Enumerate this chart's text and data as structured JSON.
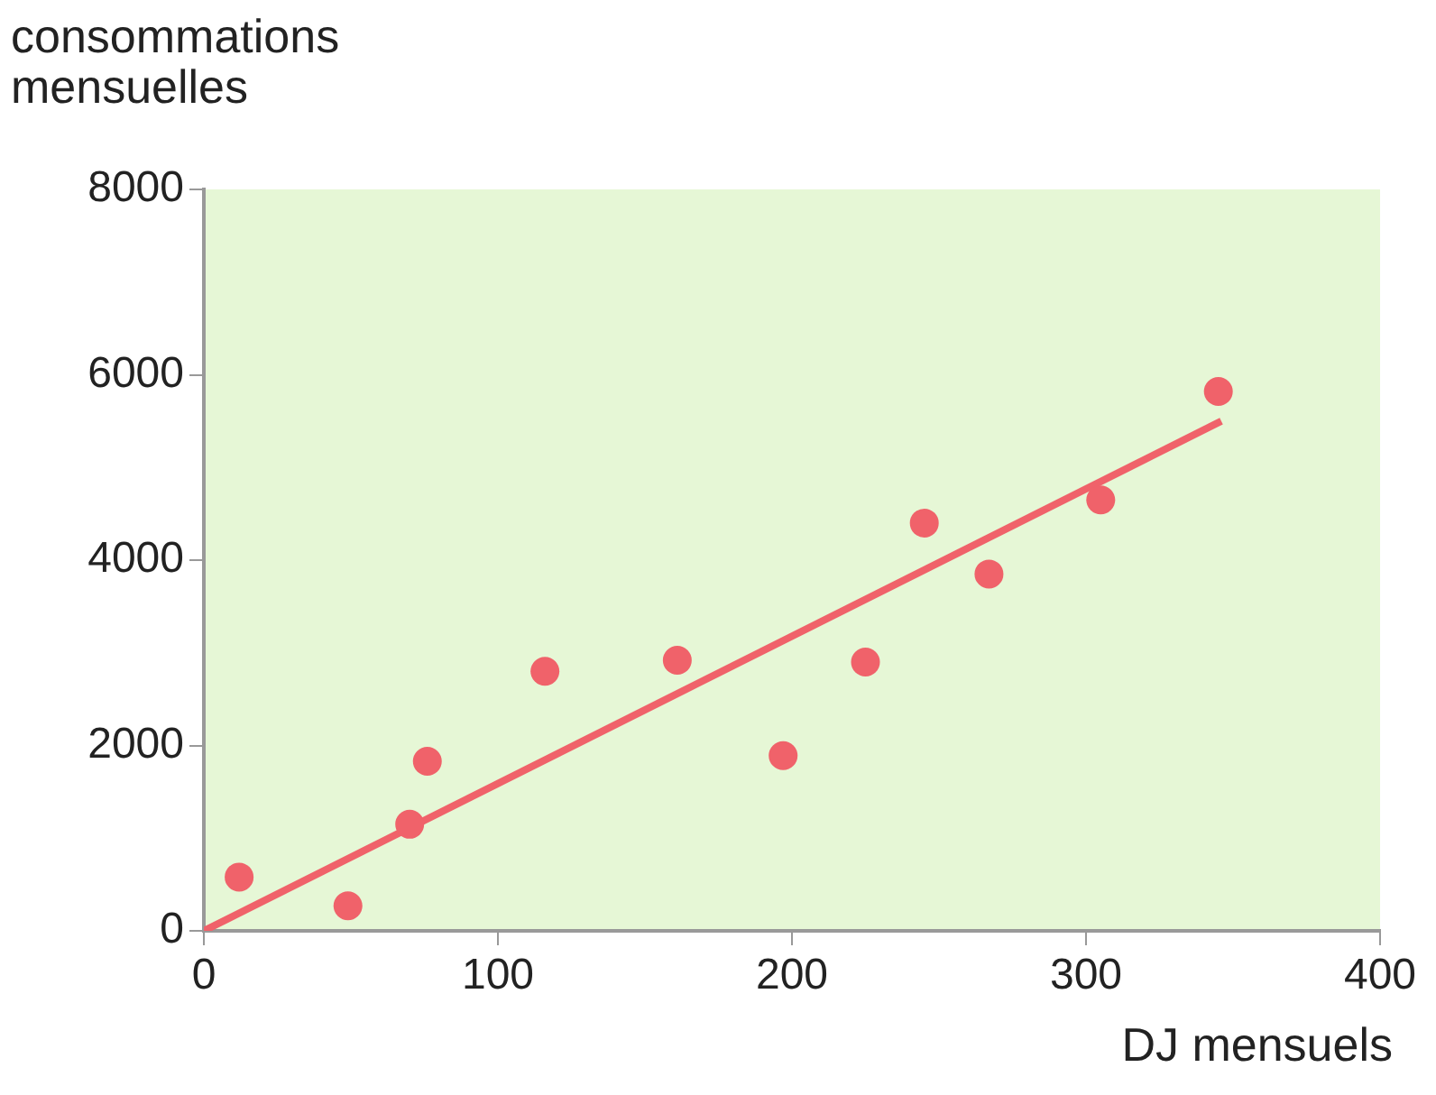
{
  "chart_data": {
    "type": "scatter",
    "xlabel": "DJ mensuels",
    "ylabel": "consommations\nmensuelles",
    "xlim": [
      0,
      400
    ],
    "ylim": [
      0,
      8000
    ],
    "xticks": [
      0,
      100,
      200,
      300,
      400
    ],
    "yticks": [
      0,
      2000,
      4000,
      6000,
      8000
    ],
    "grid": false,
    "legend": false,
    "marker": "circle",
    "series": [
      {
        "color": "#f0626a",
        "x": [
          12,
          49,
          70,
          76,
          116,
          161,
          197,
          225,
          245,
          267,
          305,
          345
        ],
        "values": [
          580,
          270,
          1150,
          1830,
          2800,
          2920,
          1890,
          2900,
          4400,
          3850,
          4650,
          5820
        ]
      },
      {
        "type": "line",
        "color": "#f0626a",
        "x": [
          0,
          346
        ],
        "values": [
          0,
          5500
        ],
        "marker": "none",
        "line_style": "solid"
      }
    ]
  }
}
